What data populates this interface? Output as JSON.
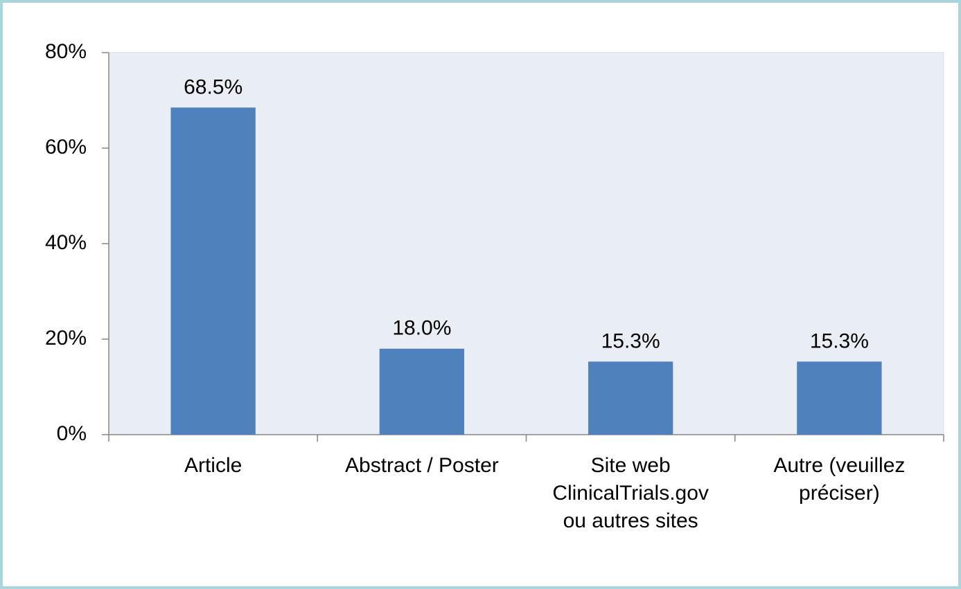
{
  "chart_data": {
    "type": "bar",
    "categories": [
      "Article",
      "Abstract / Poster",
      "Site web\nClinicalTrials.gov\nou autres sites",
      "Autre (veuillez\npréciser)"
    ],
    "values": [
      68.5,
      18.0,
      15.3,
      15.3
    ],
    "value_labels": [
      "68.5%",
      "18.0%",
      "15.3%",
      "15.3%"
    ],
    "color": "#4f81bd",
    "ylim": [
      0,
      80
    ],
    "yticks": [
      {
        "value": 0,
        "label": "0%"
      },
      {
        "value": 20,
        "label": "20%"
      },
      {
        "value": 40,
        "label": "40%"
      },
      {
        "value": 60,
        "label": "60%"
      },
      {
        "value": 80,
        "label": "80%"
      }
    ],
    "grid": false
  }
}
